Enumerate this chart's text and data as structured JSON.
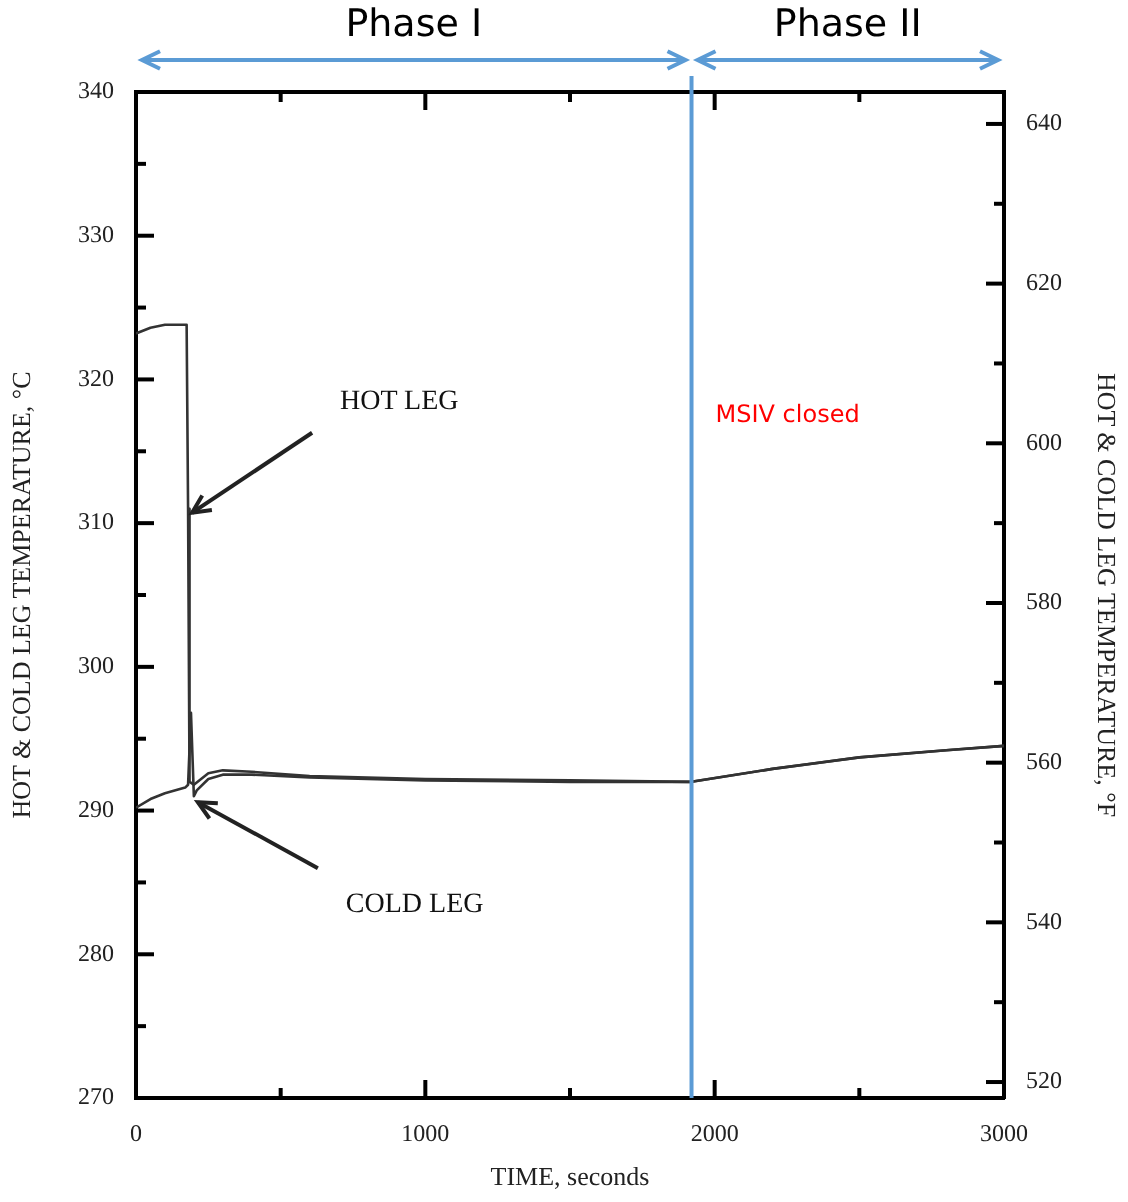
{
  "chart_data": {
    "type": "line",
    "xlabel": "TIME, seconds",
    "ylabel": "HOT & COLD LEG TEMPERATURE, °C",
    "y2label": "HOT & COLD LEG TEMPERATURE, °F",
    "xlim": [
      0,
      3000
    ],
    "xticks": [
      0,
      {
        "value": 500,
        "label": null
      },
      1000,
      {
        "value": 1500,
        "label": null
      },
      2000,
      {
        "value": 2500,
        "label": null
      },
      3000
    ],
    "ylim": [
      270,
      340
    ],
    "yticks": [
      270,
      {
        "value": 275,
        "label": null
      },
      280,
      {
        "value": 285,
        "label": null
      },
      290,
      {
        "value": 295,
        "label": null
      },
      300,
      {
        "value": 305,
        "label": null
      },
      310,
      {
        "value": 315,
        "label": null
      },
      320,
      {
        "value": 325,
        "label": null
      },
      330,
      {
        "value": 335,
        "label": null
      },
      340
    ],
    "y2lim": [
      518,
      644
    ],
    "y2ticks": [
      520,
      {
        "value": 530,
        "label": null
      },
      540,
      {
        "value": 550,
        "label": null
      },
      560,
      {
        "value": 570,
        "label": null
      },
      580,
      {
        "value": 590,
        "label": null
      },
      600,
      {
        "value": 610,
        "label": null
      },
      620,
      {
        "value": 630,
        "label": null
      },
      640
    ],
    "grid": false,
    "legend": false,
    "marker": "none",
    "line_style": "solid",
    "series": [
      {
        "color": "#333333",
        "x": [
          0,
          50,
          100,
          150,
          175,
          180,
          185,
          200,
          250,
          300,
          400,
          600,
          1000,
          1500,
          1920,
          2200,
          2500,
          2800,
          3000
        ],
        "values": [
          323.2,
          323.6,
          323.8,
          323.8,
          323.8,
          311,
          292,
          291.8,
          292.6,
          292.8,
          292.7,
          292.4,
          292.2,
          292.1,
          292.0,
          292.9,
          293.7,
          294.2,
          294.5
        ]
      },
      {
        "color": "#333333",
        "x": [
          0,
          50,
          100,
          170,
          180,
          190,
          200,
          210,
          250,
          300,
          400,
          600,
          1000,
          1500,
          1920,
          2200,
          2500,
          2800,
          3000
        ],
        "values": [
          290.2,
          290.8,
          291.2,
          291.6,
          291.8,
          296.8,
          291.0,
          291.4,
          292.2,
          292.5,
          292.5,
          292.3,
          292.1,
          292.0,
          292.0,
          292.9,
          293.7,
          294.2,
          294.5
        ]
      }
    ],
    "ref_lines": [
      {
        "axis": "x",
        "value": 1920,
        "label": "MSIV closed",
        "color": "#5b9bd5"
      }
    ],
    "annotations": [
      "Phase I",
      "Phase II",
      {
        "text": "HOT LEG",
        "x": 180,
        "y": 311
      },
      {
        "text": "COLD LEG",
        "x": 200,
        "y": 291
      }
    ]
  }
}
